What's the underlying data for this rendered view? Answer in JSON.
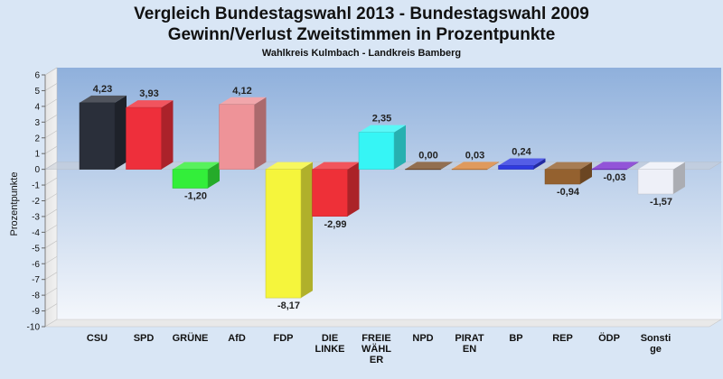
{
  "header": {
    "title_line1": "Vergleich Bundestagswahl 2013 - Bundestagswahl 2009",
    "title_line2": "Gewinn/Verlust Zweitstimmen in Prozentpunkte",
    "subtitle": "Wahlkreis Kulmbach - Landkreis Bamberg"
  },
  "chart_data": {
    "type": "bar",
    "title": "Vergleich Bundestagswahl 2013 - Bundestagswahl 2009 Gewinn/Verlust Zweitstimmen in Prozentpunkte",
    "subtitle": "Wahlkreis Kulmbach - Landkreis Bamberg",
    "xlabel": "",
    "ylabel": "Prozentpunkte",
    "ylim": [
      -10,
      6
    ],
    "yticks": [
      6,
      5,
      4,
      3,
      2,
      1,
      0,
      -1,
      -2,
      -3,
      -4,
      -5,
      -6,
      -7,
      -8,
      -9,
      -10
    ],
    "grid": false,
    "categories": [
      {
        "label": [
          "CSU"
        ],
        "value": 4.23,
        "value_label": "4,23",
        "color": "#2a2f3a"
      },
      {
        "label": [
          "SPD"
        ],
        "value": 3.93,
        "value_label": "3,93",
        "color": "#ee2f3b"
      },
      {
        "label": [
          "GRÜNE"
        ],
        "value": -1.2,
        "value_label": "-1,20",
        "color": "#33ee3a"
      },
      {
        "label": [
          "AfD"
        ],
        "value": 4.12,
        "value_label": "4,12",
        "color": "#ee9398"
      },
      {
        "label": [
          "FDP"
        ],
        "value": -8.17,
        "value_label": "-8,17",
        "color": "#f5f53c"
      },
      {
        "label": [
          "DIE",
          "LINKE"
        ],
        "value": -2.99,
        "value_label": "-2,99",
        "color": "#ee3038"
      },
      {
        "label": [
          "FREIE",
          "WÄHL",
          "ER"
        ],
        "value": 2.35,
        "value_label": "2,35",
        "color": "#36f5f5"
      },
      {
        "label": [
          "NPD"
        ],
        "value": 0.0,
        "value_label": "0,00",
        "color": "#7a4f2a"
      },
      {
        "label": [
          "PIRAT",
          "EN"
        ],
        "value": 0.03,
        "value_label": "0,03",
        "color": "#d8843a"
      },
      {
        "label": [
          "BP"
        ],
        "value": 0.24,
        "value_label": "0,24",
        "color": "#2f3ae0"
      },
      {
        "label": [
          "REP"
        ],
        "value": -0.94,
        "value_label": "-0,94",
        "color": "#94612f"
      },
      {
        "label": [
          "ÖDP"
        ],
        "value": -0.03,
        "value_label": "-0,03",
        "color": "#7a2fd0"
      },
      {
        "label": [
          "Sonsti",
          "ge"
        ],
        "value": -1.57,
        "value_label": "-1,57",
        "color": "#eef0f8"
      }
    ]
  }
}
